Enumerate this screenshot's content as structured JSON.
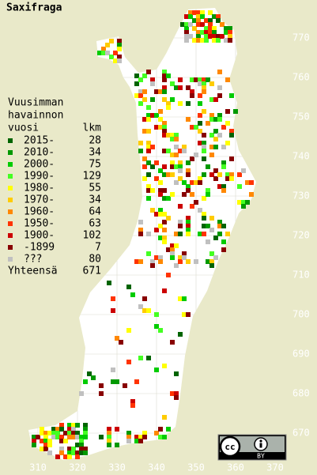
{
  "title": "Saxifraga",
  "legend": {
    "heading": [
      "Vuusimman",
      "havainnon",
      "vuosi"
    ],
    "count_heading": "lkm",
    "entries": [
      {
        "label": "2015-",
        "count": 28,
        "color": "#006400"
      },
      {
        "label": "2010-",
        "count": 34,
        "color": "#009900"
      },
      {
        "label": "2000-",
        "count": 75,
        "color": "#00cc00"
      },
      {
        "label": "1990-",
        "count": 129,
        "color": "#44ff22"
      },
      {
        "label": "1980-",
        "count": 55,
        "color": "#ffff00"
      },
      {
        "label": "1970-",
        "count": 34,
        "color": "#ffcc00"
      },
      {
        "label": "1960-",
        "count": 64,
        "color": "#ff8800"
      },
      {
        "label": "1950-",
        "count": 63,
        "color": "#ff3300"
      },
      {
        "label": "1900-",
        "count": 102,
        "color": "#cc0000"
      },
      {
        "label": "-1899",
        "count": 7,
        "color": "#880000"
      },
      {
        "label": "???",
        "count": 80,
        "color": "#c0c0c0"
      }
    ],
    "total_label": "Yhteensä",
    "total": 671
  },
  "map_grid": {
    "northing": [
      770,
      760,
      750,
      740,
      730,
      720,
      710,
      700,
      690,
      680,
      670
    ],
    "easting": [
      310,
      320,
      330,
      340,
      350,
      360,
      370
    ]
  },
  "license": {
    "logo": "cc",
    "type": "BY"
  }
}
